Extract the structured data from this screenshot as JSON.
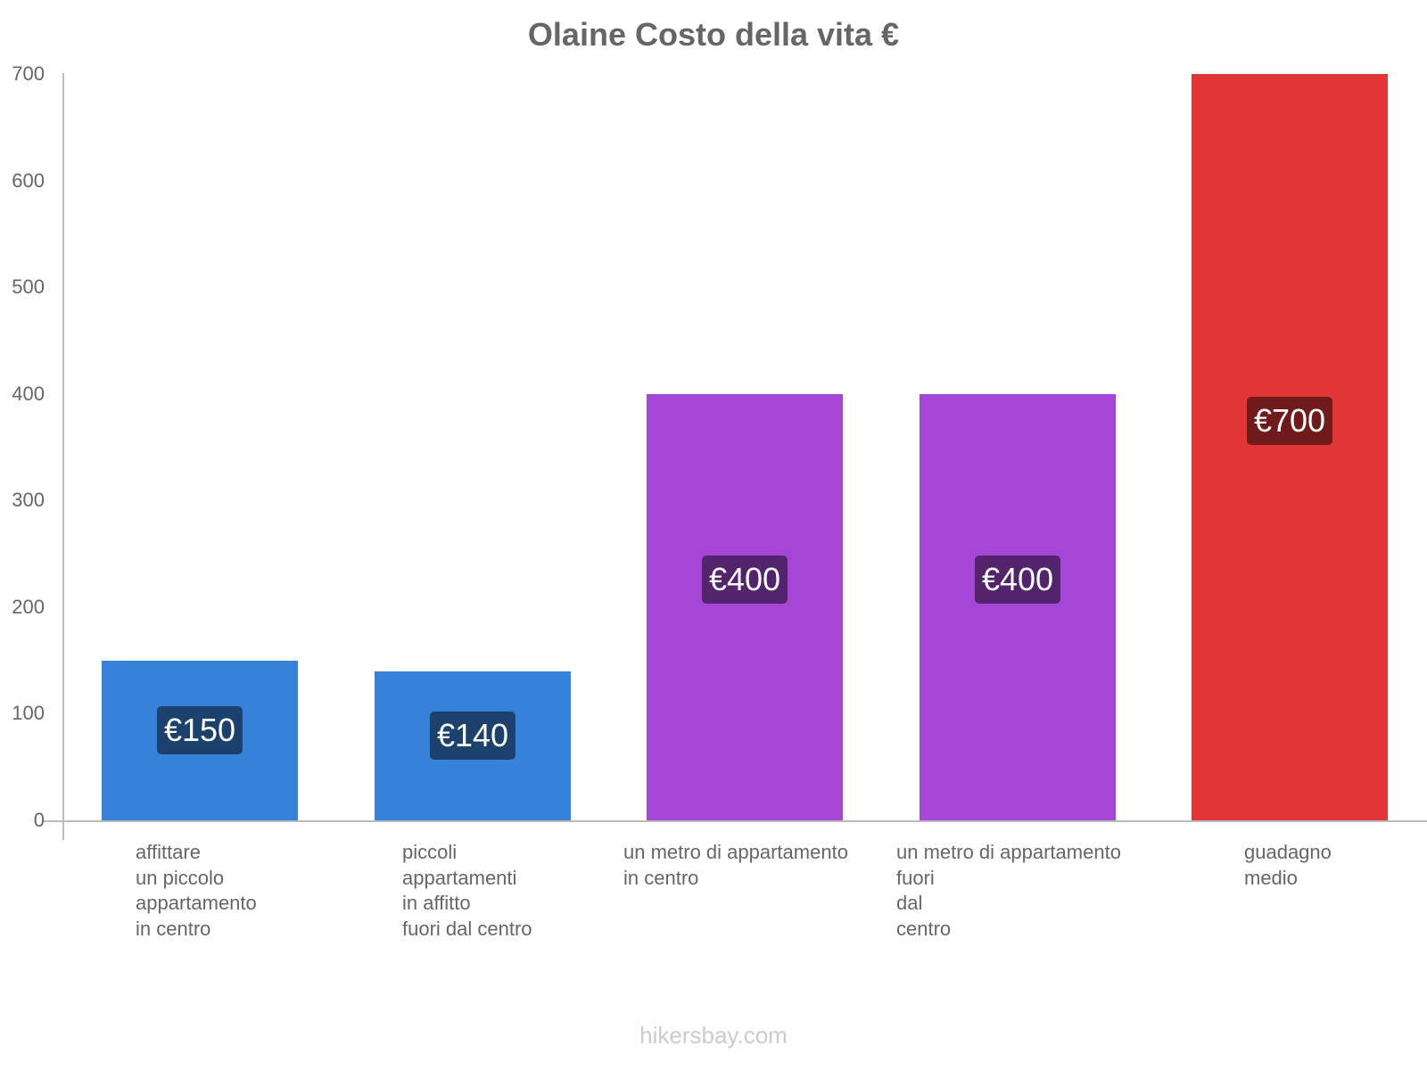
{
  "chart_data": {
    "type": "bar",
    "title": "Olaine Costo della vita €",
    "xlabel": "",
    "ylabel": "",
    "ylim": [
      0,
      700
    ],
    "yticks": [
      0,
      100,
      200,
      300,
      400,
      500,
      600,
      700
    ],
    "grid": false,
    "categories": [
      "affittare un piccolo appartamento in centro",
      "piccoli appartamenti in affitto fuori dal centro",
      "un metro di appartamento in centro",
      "un metro di appartamento fuori dal centro",
      "guadagno medio"
    ],
    "category_lines": [
      "affittare\nun piccolo\nappartamento\nin centro",
      "piccoli\nappartamenti\nin affitto\nfuori dal centro",
      "un metro di appartamento\nin centro",
      "un metro di appartamento\nfuori\ndal\ncentro",
      "guadagno\nmedio"
    ],
    "values": [
      150,
      140,
      400,
      400,
      700
    ],
    "data_labels": [
      "€150",
      "€140",
      "€400",
      "€400",
      "€700"
    ],
    "bar_colors": [
      "#3682db",
      "#3682db",
      "#a646d7",
      "#a646d7",
      "#e03636"
    ],
    "label_bg_colors": [
      "#1d416d",
      "#1d416d",
      "#53236b",
      "#53236b",
      "#701b1b"
    ]
  },
  "footer": "hikersbay.com"
}
